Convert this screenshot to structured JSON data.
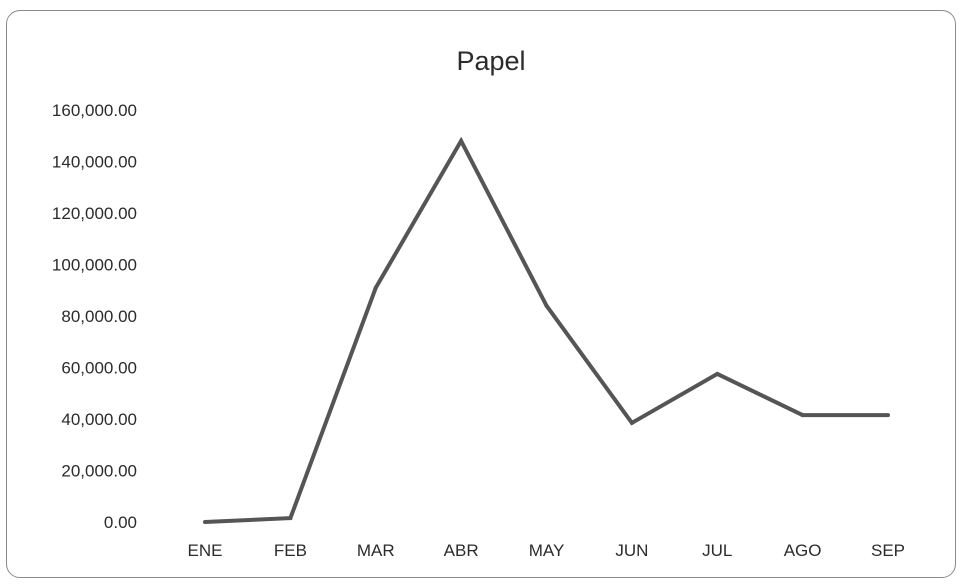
{
  "chart_data": {
    "type": "line",
    "title": "Papel",
    "xlabel": "",
    "ylabel": "",
    "categories": [
      "ENE",
      "FEB",
      "MAR",
      "ABR",
      "MAY",
      "JUN",
      "JUL",
      "AGO",
      "SEP"
    ],
    "series": [
      {
        "values": [
          0,
          1500,
          91000,
          148000,
          84000,
          38500,
          57500,
          41500,
          41500
        ],
        "color": "#555555"
      }
    ],
    "ylim": [
      0,
      160000
    ],
    "yticks": [
      0,
      20000,
      40000,
      60000,
      80000,
      100000,
      120000,
      140000,
      160000
    ],
    "ytick_labels": [
      "0.00",
      "20,000.00",
      "40,000.00",
      "60,000.00",
      "80,000.00",
      "100,000.00",
      "120,000.00",
      "140,000.00",
      "160,000.00"
    ],
    "grid": false,
    "legend": "none"
  }
}
